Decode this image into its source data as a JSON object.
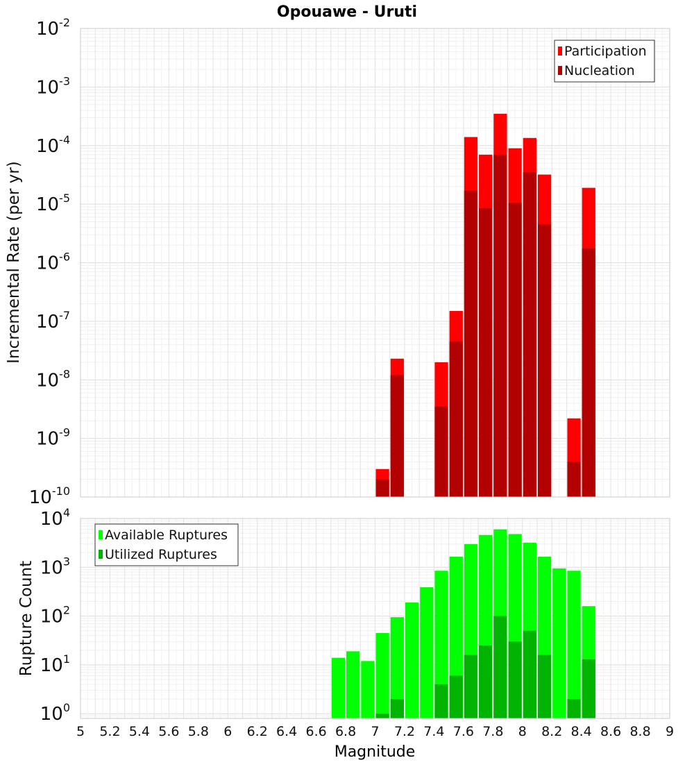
{
  "title": "Opouawe - Uruti",
  "xlabel": "Magnitude",
  "x_ticks": [
    "5",
    "5.2",
    "5.4",
    "5.6",
    "5.8",
    "6",
    "6.2",
    "6.4",
    "6.6",
    "6.8",
    "7",
    "7.2",
    "7.4",
    "7.6",
    "7.8",
    "8",
    "8.2",
    "8.4",
    "8.6",
    "8.8",
    "9"
  ],
  "colors": {
    "participation": "#ff0000",
    "nucleation": "#b30000",
    "available": "#00ff00",
    "utilized": "#00b300",
    "grid": "#e6e6e6",
    "frame": "#c8c8c8"
  },
  "chart_data": [
    {
      "type": "bar",
      "ylabel": "Incremental Rate (per yr)",
      "yscale": "log",
      "xlim": [
        5,
        9
      ],
      "ylim": [
        1e-10,
        0.01
      ],
      "y_ticks": [
        {
          "base": "10",
          "exp": "-10"
        },
        {
          "base": "10",
          "exp": "-9"
        },
        {
          "base": "10",
          "exp": "-8"
        },
        {
          "base": "10",
          "exp": "-7"
        },
        {
          "base": "10",
          "exp": "-6"
        },
        {
          "base": "10",
          "exp": "-5"
        },
        {
          "base": "10",
          "exp": "-4"
        },
        {
          "base": "10",
          "exp": "-3"
        },
        {
          "base": "10",
          "exp": "-2"
        }
      ],
      "legend_position": "top-right",
      "x": [
        7.05,
        7.15,
        7.45,
        7.55,
        7.65,
        7.75,
        7.85,
        7.95,
        8.05,
        8.15,
        8.35,
        8.45
      ],
      "series": [
        {
          "name": "Participation",
          "values": [
            3e-10,
            2.3e-08,
            2e-08,
            1.5e-07,
            0.00014,
            7e-05,
            0.00035,
            9e-05,
            0.000135,
            3.2e-05,
            2.2e-09,
            1.9e-05
          ]
        },
        {
          "name": "Nucleation",
          "values": [
            2e-10,
            1.2e-08,
            3.5e-09,
            4.5e-08,
            1.7e-05,
            8.5e-06,
            7e-05,
            1.05e-05,
            3.5e-05,
            4.5e-06,
            4e-10,
            1.75e-06
          ]
        }
      ]
    },
    {
      "type": "bar",
      "ylabel": "Rupture Count",
      "yscale": "log",
      "xlim": [
        5,
        9
      ],
      "ylim": [
        0.8,
        10000
      ],
      "y_ticks": [
        {
          "base": "10",
          "exp": "0"
        },
        {
          "base": "10",
          "exp": "1"
        },
        {
          "base": "10",
          "exp": "2"
        },
        {
          "base": "10",
          "exp": "3"
        },
        {
          "base": "10",
          "exp": "4"
        }
      ],
      "legend_position": "top-left",
      "x": [
        6.75,
        6.85,
        6.95,
        7.05,
        7.15,
        7.25,
        7.35,
        7.45,
        7.55,
        7.65,
        7.75,
        7.85,
        7.95,
        8.05,
        8.15,
        8.25,
        8.35,
        8.45
      ],
      "series": [
        {
          "name": "Available Ruptures",
          "values": [
            14,
            19,
            12,
            45,
            95,
            190,
            390,
            850,
            1650,
            3000,
            4600,
            6000,
            4800,
            3200,
            1650,
            950,
            850,
            160
          ]
        },
        {
          "name": "Utilized Ruptures",
          "values": [
            null,
            null,
            null,
            1,
            2,
            null,
            null,
            4,
            6,
            16,
            25,
            100,
            30,
            50,
            16,
            null,
            2,
            13
          ]
        }
      ]
    }
  ]
}
